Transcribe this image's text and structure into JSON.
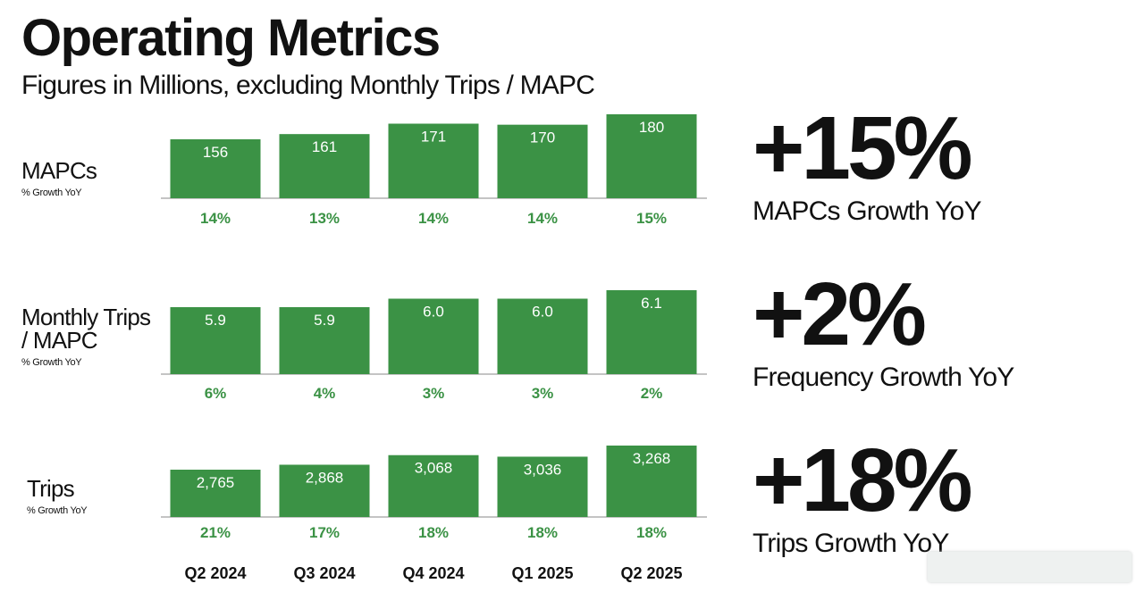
{
  "title": "Operating Metrics",
  "subtitle": "Figures in Millions, excluding Monthly Trips / MAPC",
  "colors": {
    "bar": "#3b9245",
    "growth_text": "#3b9245",
    "bar_label": "#ffffff",
    "baseline": "#888888"
  },
  "chart_data": {
    "type": "bar",
    "categories": [
      "Q2 2024",
      "Q3 2024",
      "Q4 2024",
      "Q1 2025",
      "Q2 2025"
    ],
    "panels": [
      {
        "label": "MAPCs",
        "sublabel": "% Growth YoY",
        "values": [
          156,
          161,
          171,
          170,
          180
        ],
        "value_labels": [
          "156",
          "161",
          "171",
          "170",
          "180"
        ],
        "growth_labels": [
          "14%",
          "13%",
          "14%",
          "14%",
          "15%"
        ]
      },
      {
        "label": "Monthly Trips / MAPC",
        "sublabel": "% Growth YoY",
        "values": [
          5.9,
          5.9,
          6.0,
          6.0,
          6.1
        ],
        "value_labels": [
          "5.9",
          "5.9",
          "6.0",
          "6.0",
          "6.1"
        ],
        "growth_labels": [
          "6%",
          "4%",
          "3%",
          "3%",
          "2%"
        ]
      },
      {
        "label": "Trips",
        "sublabel": "% Growth YoY",
        "values": [
          2765,
          2868,
          3068,
          3036,
          3268
        ],
        "value_labels": [
          "2,765",
          "2,868",
          "3,068",
          "3,036",
          "3,268"
        ],
        "growth_labels": [
          "21%",
          "17%",
          "18%",
          "18%",
          "18%"
        ]
      }
    ]
  },
  "kpis": [
    {
      "value": "+15%",
      "caption": "MAPCs Growth YoY"
    },
    {
      "value": "+2%",
      "caption": "Frequency Growth YoY"
    },
    {
      "value": "+18%",
      "caption": "Trips Growth YoY"
    }
  ]
}
